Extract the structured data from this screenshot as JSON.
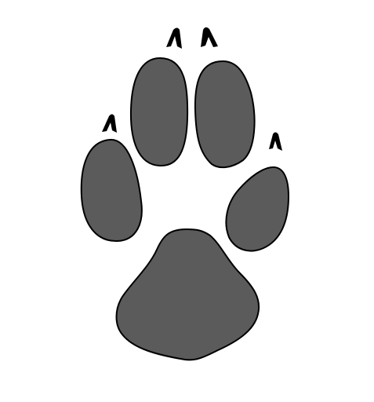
{
  "image": {
    "subject": "paw-print-icon",
    "background_color": "#ffffff",
    "pad_color": "#5b5b5b",
    "claw_color": "#000000",
    "outline_color": "#000000"
  },
  "pads": {
    "toe_count": 4,
    "claw_count": 4,
    "heel_count": 1
  }
}
